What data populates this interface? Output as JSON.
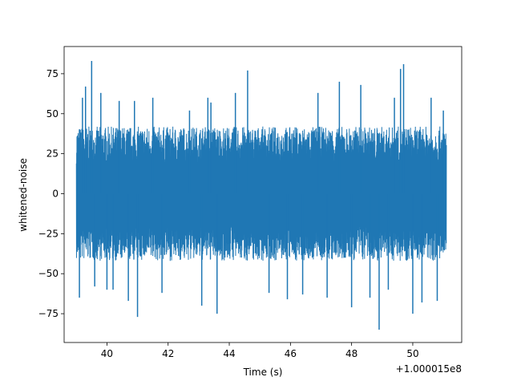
{
  "chart_data": {
    "type": "line",
    "title": "",
    "xlabel": "Time (s)",
    "ylabel": "whitened-noise",
    "x_offset_label": "+1.000015e8",
    "xlim": [
      38.6,
      51.6
    ],
    "ylim": [
      -93,
      92
    ],
    "x_ticks": [
      40,
      42,
      44,
      46,
      48,
      50
    ],
    "y_ticks": [
      -75,
      -50,
      -25,
      0,
      25,
      50,
      75
    ],
    "grid": false,
    "legend": "none",
    "series": [
      {
        "color": "#1f77b4",
        "x_range": [
          39.0,
          51.1
        ],
        "typical_envelope": [
          -42,
          42
        ],
        "spikes": [
          {
            "x": 39.1,
            "y": -65
          },
          {
            "x": 39.2,
            "y": 60
          },
          {
            "x": 39.3,
            "y": 67
          },
          {
            "x": 39.5,
            "y": 83
          },
          {
            "x": 39.6,
            "y": -58
          },
          {
            "x": 39.8,
            "y": 63
          },
          {
            "x": 40.0,
            "y": -60
          },
          {
            "x": 40.2,
            "y": -60
          },
          {
            "x": 40.4,
            "y": 58
          },
          {
            "x": 40.7,
            "y": -67
          },
          {
            "x": 40.9,
            "y": 58
          },
          {
            "x": 41.0,
            "y": -77
          },
          {
            "x": 41.5,
            "y": 60
          },
          {
            "x": 41.8,
            "y": -62
          },
          {
            "x": 42.7,
            "y": 52
          },
          {
            "x": 43.1,
            "y": -70
          },
          {
            "x": 43.3,
            "y": 60
          },
          {
            "x": 43.4,
            "y": 57
          },
          {
            "x": 43.6,
            "y": -75
          },
          {
            "x": 44.2,
            "y": 63
          },
          {
            "x": 44.6,
            "y": 77
          },
          {
            "x": 45.3,
            "y": -62
          },
          {
            "x": 45.9,
            "y": -66
          },
          {
            "x": 46.4,
            "y": -63
          },
          {
            "x": 46.9,
            "y": 63
          },
          {
            "x": 47.2,
            "y": -65
          },
          {
            "x": 47.6,
            "y": 70
          },
          {
            "x": 48.0,
            "y": -71
          },
          {
            "x": 48.3,
            "y": 68
          },
          {
            "x": 48.6,
            "y": -65
          },
          {
            "x": 48.9,
            "y": -85
          },
          {
            "x": 49.2,
            "y": -60
          },
          {
            "x": 49.4,
            "y": 60
          },
          {
            "x": 49.6,
            "y": 78
          },
          {
            "x": 49.7,
            "y": 81
          },
          {
            "x": 50.0,
            "y": -75
          },
          {
            "x": 50.3,
            "y": -68
          },
          {
            "x": 50.6,
            "y": 60
          },
          {
            "x": 50.8,
            "y": -67
          },
          {
            "x": 51.0,
            "y": 52
          }
        ]
      }
    ]
  }
}
